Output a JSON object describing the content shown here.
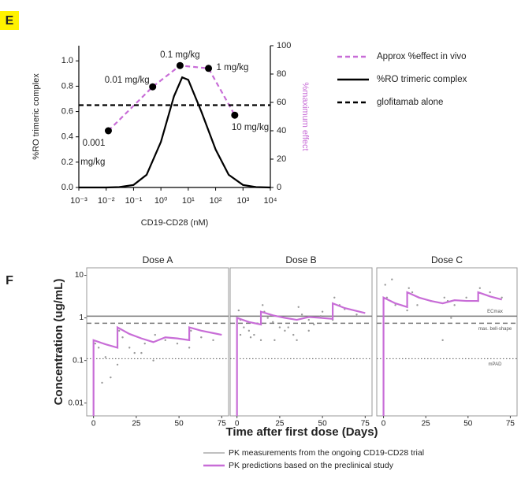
{
  "chart_data": [
    {
      "type": "line",
      "panel_label": "E",
      "x_label": "CD19-CD28 (nM)",
      "y_label": "%RO trimeric complex",
      "y2_label": "%maximum effect",
      "y2_color": "#c86dd7",
      "x_log": true,
      "xlim": [
        0.001,
        10000
      ],
      "xticks": [
        {
          "value": 0.001,
          "label": "10⁻³"
        },
        {
          "value": 0.01,
          "label": "10⁻²"
        },
        {
          "value": 0.1,
          "label": "10⁻¹"
        },
        {
          "value": 1,
          "label": "10⁰"
        },
        {
          "value": 10,
          "label": "10¹"
        },
        {
          "value": 100,
          "label": "10²"
        },
        {
          "value": 1000,
          "label": "10³"
        },
        {
          "value": 10000,
          "label": "10⁴"
        }
      ],
      "ylim": [
        0,
        1.12
      ],
      "yticks": [
        {
          "value": 0,
          "label": "0.0"
        },
        0.2,
        0.4,
        0.6,
        0.8,
        {
          "value": 1,
          "label": "1.0"
        }
      ],
      "y2lim": [
        0,
        100
      ],
      "y2ticks": [
        0,
        20,
        40,
        60,
        80,
        100
      ],
      "series": [
        {
          "name": "Approx %effect in vivo",
          "color": "#c86dd7",
          "style": "dashed",
          "axis": "y2",
          "markers": true,
          "x": [
            0.012,
            0.5,
            5,
            55,
            500
          ],
          "values": [
            40,
            71,
            86,
            84,
            51
          ],
          "point_labels": [
            [
              "0.001",
              "mg/kg"
            ],
            [
              "0.01 mg/kg"
            ],
            [
              "0.1 mg/kg"
            ],
            [
              "1 mg/kg"
            ],
            [
              "10 mg/kg"
            ]
          ]
        },
        {
          "name": "%RO trimeric complex",
          "color": "#000000",
          "style": "solid",
          "x": [
            0.001,
            0.01,
            0.03,
            0.1,
            0.3,
            1,
            3,
            6,
            10,
            30,
            100,
            300,
            1000,
            3000,
            10000
          ],
          "values": [
            0,
            0,
            0.003,
            0.02,
            0.1,
            0.36,
            0.72,
            0.87,
            0.85,
            0.6,
            0.3,
            0.1,
            0.02,
            0.003,
            0
          ]
        },
        {
          "name": "glofitamab alone",
          "color": "#000000",
          "style": "dashed",
          "x": [
            0.001,
            10000
          ],
          "values": [
            0.65,
            0.65
          ]
        }
      ]
    },
    {
      "type": "facet-line",
      "panel_label": "F",
      "x_label": "Time after first dose (Days)",
      "y_label": "Concentration (ug/mL)",
      "y_log": true,
      "ylim": [
        0.005,
        15
      ],
      "yticks": [
        0.01,
        0.1,
        1,
        10
      ],
      "xlim": [
        -4,
        79
      ],
      "xticks": [
        0,
        25,
        50,
        75
      ],
      "series": [
        {
          "name": "PK measurements from the ongoing CD19-CD28 trial",
          "color": "#9a9a9a"
        },
        {
          "name": "PK predictions based on the preclinical study",
          "color": "#c86dd7"
        }
      ],
      "reference_lines": [
        {
          "value": 1.1,
          "label": "ECmax",
          "style": "solid"
        },
        {
          "value": 0.75,
          "label": "max. bell-shape",
          "style": "dashed"
        },
        {
          "value": 0.11,
          "label": "mPAD",
          "style": "dotted"
        }
      ],
      "panels": [
        {
          "title": "Dose A",
          "measured": {
            "x": [
              1,
              3,
              7,
              14,
              15,
              17,
              21,
              28,
              35,
              36,
              42,
              49,
              56,
              57,
              63,
              70,
              5,
              10,
              24,
              30
            ],
            "values": [
              0.25,
              0.2,
              0.12,
              0.08,
              0.5,
              0.35,
              0.2,
              0.15,
              0.1,
              0.4,
              0.3,
              0.25,
              0.2,
              0.5,
              0.35,
              0.3,
              0.03,
              0.04,
              0.15,
              0.25
            ]
          },
          "predicted": {
            "x": [
              0,
              0,
              7,
              14,
              14,
              21,
              28,
              35,
              42,
              49,
              56,
              56,
              63,
              70,
              75
            ],
            "values": [
              0.005,
              0.3,
              0.24,
              0.2,
              0.6,
              0.42,
              0.33,
              0.27,
              0.35,
              0.33,
              0.3,
              0.6,
              0.5,
              0.44,
              0.4
            ]
          }
        },
        {
          "title": "Dose B",
          "measured": {
            "x": [
              1,
              2,
              4,
              7,
              10,
              14,
              15,
              16,
              18,
              21,
              25,
              28,
              33,
              35,
              36,
              38,
              42,
              45,
              49,
              56,
              57,
              60,
              63,
              70,
              2,
              8,
              22,
              30,
              42,
              50
            ],
            "values": [
              1.5,
              0.9,
              0.6,
              0.5,
              0.4,
              0.3,
              2,
              1.4,
              1,
              0.8,
              0.6,
              0.5,
              0.4,
              0.3,
              1.8,
              1.2,
              0.9,
              0.7,
              1.1,
              0.9,
              3,
              2,
              1.6,
              1.2,
              0.4,
              0.35,
              0.3,
              0.6,
              0.5,
              1.4
            ]
          },
          "predicted": {
            "x": [
              0,
              0,
              7,
              14,
              14,
              21,
              28,
              35,
              42,
              49,
              56,
              56,
              63,
              70,
              75
            ],
            "values": [
              0.005,
              1,
              0.8,
              0.7,
              1.4,
              1.15,
              1.0,
              0.9,
              1.05,
              1.0,
              0.95,
              2.2,
              1.7,
              1.45,
              1.3
            ]
          }
        },
        {
          "title": "Dose C",
          "measured": {
            "x": [
              1,
              2,
              7,
              14,
              15,
              17,
              21,
              28,
              35,
              36,
              38,
              42,
              49,
              56,
              57,
              63,
              70,
              5,
              20,
              40
            ],
            "values": [
              6,
              3,
              2,
              1.5,
              5,
              4,
              3,
              2.5,
              0.3,
              3,
              2.5,
              2,
              3,
              2.5,
              5,
              4,
              3,
              8,
              2,
              1
            ]
          },
          "predicted": {
            "x": [
              0,
              0,
              7,
              14,
              14,
              21,
              28,
              35,
              42,
              49,
              56,
              56,
              63,
              70
            ],
            "values": [
              0.005,
              3,
              2.2,
              1.8,
              4,
              3,
              2.5,
              2.2,
              2.6,
              2.5,
              2.5,
              4,
              3.2,
              2.7
            ]
          }
        }
      ]
    }
  ]
}
